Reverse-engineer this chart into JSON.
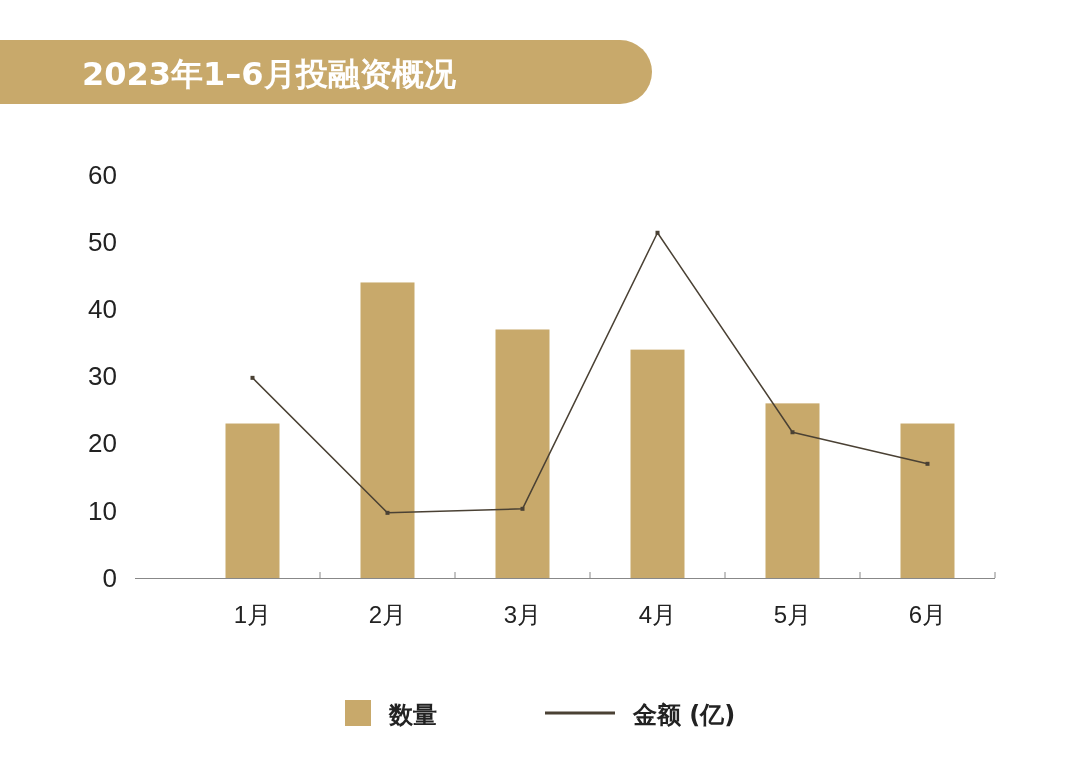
{
  "chart_data": {
    "type": "bar",
    "title": "2023年1–6月投融资概况",
    "categories": [
      "1月",
      "2月",
      "3月",
      "4月",
      "5月",
      "6月"
    ],
    "series": [
      {
        "name": "数量",
        "color": "#c8a96b",
        "values": [
          23,
          44,
          37,
          34,
          26,
          23
        ]
      },
      {
        "name": "金额 (亿)",
        "type": "line",
        "color": "#4a4134",
        "values": [
          29.8,
          9.7,
          10.3,
          51.4,
          21.7,
          17.0
        ]
      }
    ],
    "ylim": [
      0,
      60
    ],
    "yticks": [
      0,
      10,
      20,
      30,
      40,
      50,
      60
    ],
    "grid": false,
    "legend": "bottom",
    "marker": "square",
    "line_style": "solid"
  }
}
